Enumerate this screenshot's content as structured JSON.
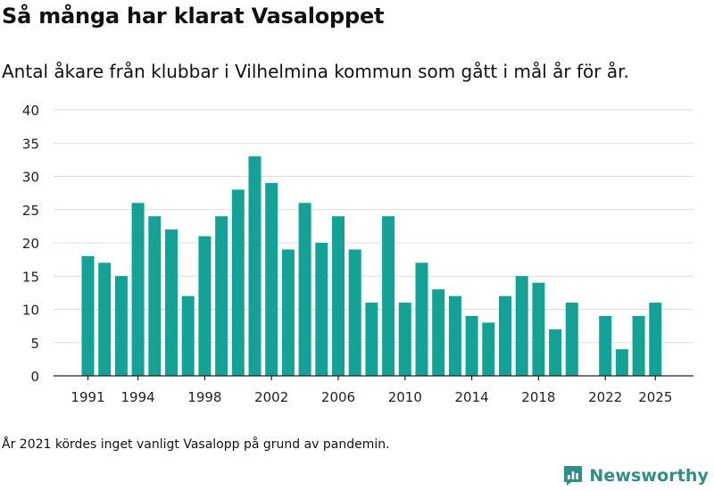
{
  "title": "Så många har klarat Vasaloppet",
  "subtitle": "Antal åkare från klubbar i Vilhelmina kommun som gått i mål år för år.",
  "footnote": "År 2021 kördes inget vanligt Vasalopp på grund av pandemin.",
  "brand": {
    "name": "Newsworthy",
    "color": "#2f8f86"
  },
  "chart_data": {
    "type": "bar",
    "title": "Så många har klarat Vasaloppet",
    "xlabel": "",
    "ylabel": "",
    "ylim": [
      0,
      40
    ],
    "yticks": [
      0,
      5,
      10,
      15,
      20,
      25,
      30,
      35,
      40
    ],
    "xticks": [
      1991,
      1994,
      1998,
      2002,
      2006,
      2010,
      2014,
      2018,
      2022,
      2025
    ],
    "grid": true,
    "bar_color": "#13a396",
    "categories": [
      1991,
      1992,
      1993,
      1994,
      1995,
      1996,
      1997,
      1998,
      1999,
      2000,
      2001,
      2002,
      2003,
      2004,
      2005,
      2006,
      2007,
      2008,
      2009,
      2010,
      2011,
      2012,
      2013,
      2014,
      2015,
      2016,
      2017,
      2018,
      2019,
      2020,
      2021,
      2022,
      2023,
      2024,
      2025
    ],
    "values": [
      18,
      17,
      15,
      26,
      24,
      22,
      12,
      21,
      24,
      28,
      33,
      29,
      19,
      26,
      20,
      24,
      19,
      11,
      24,
      11,
      17,
      13,
      12,
      9,
      8,
      12,
      15,
      14,
      7,
      11,
      null,
      9,
      4,
      9,
      11
    ]
  }
}
